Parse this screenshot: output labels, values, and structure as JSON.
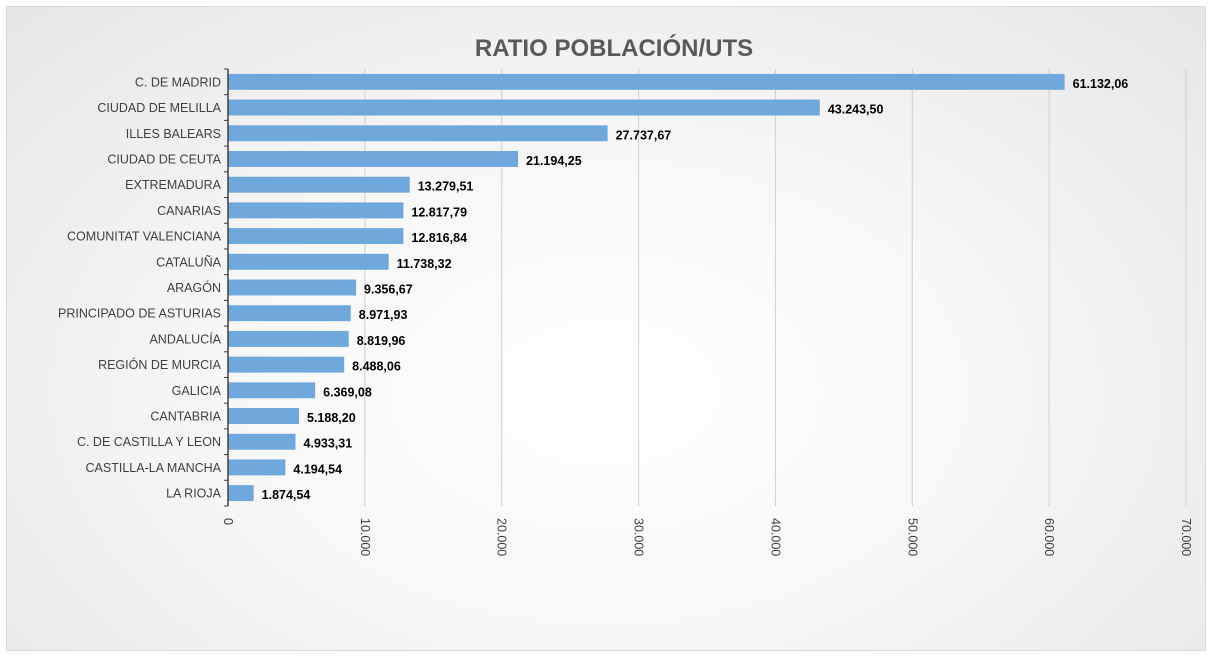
{
  "chart_data": {
    "type": "bar",
    "orientation": "horizontal",
    "title": "RATIO POBLACIÓN/UTS",
    "xlabel": "",
    "ylabel": "",
    "xlim": [
      0,
      70000
    ],
    "grid": true,
    "categories": [
      "C. DE MADRID",
      "CIUDAD DE MELILLA",
      "ILLES BALEARS",
      "CIUDAD DE CEUTA",
      "EXTREMADURA",
      "CANARIAS",
      "COMUNITAT VALENCIANA",
      "CATALUÑA",
      "ARAGÓN",
      "PRINCIPADO DE ASTURIAS",
      "ANDALUCÍA",
      "REGIÓN DE MURCIA",
      "GALICIA",
      "CANTABRIA",
      "C. DE CASTILLA Y LEON",
      "CASTILLA-LA MANCHA",
      "LA RIOJA"
    ],
    "values": [
      61132.06,
      43243.5,
      27737.67,
      21194.25,
      13279.51,
      12817.79,
      12816.84,
      11738.32,
      9356.67,
      8971.93,
      8819.96,
      8488.06,
      6369.08,
      5188.2,
      4933.31,
      4194.54,
      1874.54
    ],
    "value_labels": [
      "61.132,06",
      "43.243,50",
      "27.737,67",
      "21.194,25",
      "13.279,51",
      "12.817,79",
      "12.816,84",
      "11.738,32",
      "9.356,67",
      "8.971,93",
      "8.819,96",
      "8.488,06",
      "6.369,08",
      "5.188,20",
      "4.933,31",
      "4.194,54",
      "1.874,54"
    ],
    "x_ticks": [
      0,
      10000,
      20000,
      30000,
      40000,
      50000,
      60000,
      70000
    ],
    "x_tick_labels": [
      "0",
      "10.000",
      "20.000",
      "30.000",
      "40.000",
      "50.000",
      "60.000",
      "70.000"
    ],
    "bar_color": "#6fa8dc",
    "grid_color": "#d0d0d0",
    "axis_color": "#404040"
  }
}
